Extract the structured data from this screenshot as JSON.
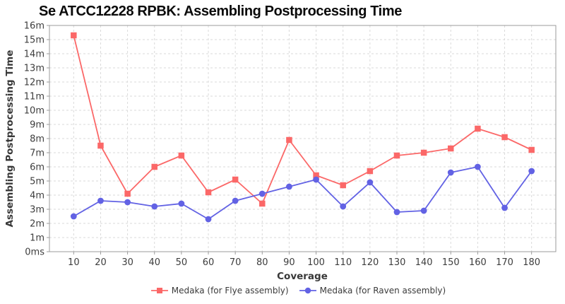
{
  "chart_data": {
    "type": "line",
    "title": "Se ATCC12228 RPBK: Assembling Postprocessing Time",
    "xlabel": "Coverage",
    "ylabel": "Assembling Postprocessing Time",
    "x": [
      10,
      20,
      30,
      40,
      50,
      60,
      70,
      80,
      90,
      100,
      110,
      120,
      130,
      140,
      150,
      160,
      170,
      180
    ],
    "series": [
      {
        "name": "Medaka (for Flye assembly)",
        "marker": "square",
        "color": "#fb6868",
        "values": [
          15.3,
          7.5,
          4.1,
          6.0,
          6.8,
          4.2,
          5.1,
          3.4,
          7.9,
          5.4,
          4.7,
          5.7,
          6.8,
          7.0,
          7.3,
          8.7,
          8.1,
          7.2
        ]
      },
      {
        "name": "Medaka (for Raven assembly)",
        "marker": "circle",
        "color": "#6262e4",
        "values": [
          2.5,
          3.6,
          3.5,
          3.2,
          3.4,
          2.3,
          3.6,
          4.1,
          4.6,
          5.1,
          3.2,
          4.9,
          2.8,
          2.9,
          5.6,
          6.0,
          3.1,
          5.7
        ]
      }
    ],
    "xlim": [
      1,
      189
    ],
    "ylim": [
      0,
      16
    ],
    "x_ticks": [
      10,
      20,
      30,
      40,
      50,
      60,
      70,
      80,
      90,
      100,
      110,
      120,
      130,
      140,
      150,
      160,
      170,
      180
    ],
    "y_ticks": [
      {
        "value": 0,
        "label": "0ms"
      },
      {
        "value": 1,
        "label": "1m"
      },
      {
        "value": 2,
        "label": "2m"
      },
      {
        "value": 3,
        "label": "3m"
      },
      {
        "value": 4,
        "label": "4m"
      },
      {
        "value": 5,
        "label": "5m"
      },
      {
        "value": 6,
        "label": "6m"
      },
      {
        "value": 7,
        "label": "7m"
      },
      {
        "value": 8,
        "label": "8m"
      },
      {
        "value": 9,
        "label": "9m"
      },
      {
        "value": 10,
        "label": "10m"
      },
      {
        "value": 11,
        "label": "11m"
      },
      {
        "value": 12,
        "label": "12m"
      },
      {
        "value": 13,
        "label": "13m"
      },
      {
        "value": 14,
        "label": "14m"
      },
      {
        "value": 15,
        "label": "15m"
      },
      {
        "value": 16,
        "label": "16m"
      }
    ],
    "grid": true,
    "legend_position": "bottom"
  },
  "colors": {
    "background": "#ffffff",
    "grid": "#dadada",
    "axis_border": "#9b9b9b",
    "tick_text": "#3d3d3d",
    "axis_title_text": "#383838",
    "title_text": "#0a0a0a",
    "series_flye": "#fb6868",
    "series_raven": "#6262e4"
  }
}
